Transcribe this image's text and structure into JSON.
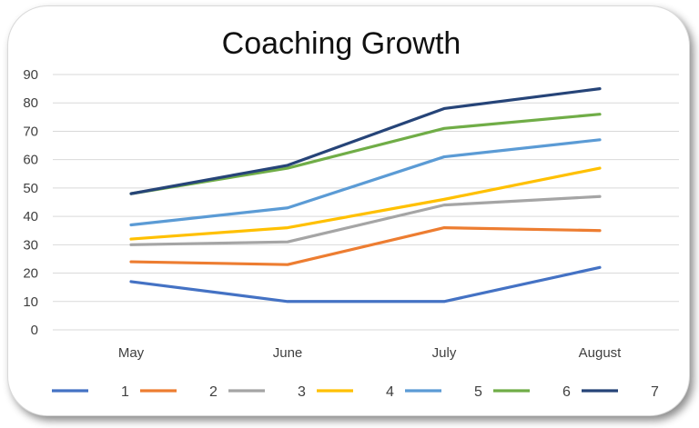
{
  "chart_data": {
    "type": "line",
    "title": "Coaching Growth",
    "xlabel": "",
    "ylabel": "",
    "categories": [
      "May",
      "June",
      "July",
      "August"
    ],
    "ylim": [
      0,
      90
    ],
    "yticks": [
      0,
      10,
      20,
      30,
      40,
      50,
      60,
      70,
      80,
      90
    ],
    "grid": true,
    "legend_position": "bottom",
    "series": [
      {
        "name": "1",
        "color": "#4472C4",
        "values": [
          17,
          10,
          10,
          22
        ]
      },
      {
        "name": "2",
        "color": "#ED7D31",
        "values": [
          24,
          23,
          36,
          35
        ]
      },
      {
        "name": "3",
        "color": "#A5A5A5",
        "values": [
          30,
          31,
          44,
          47
        ]
      },
      {
        "name": "4",
        "color": "#FFC000",
        "values": [
          32,
          36,
          46,
          57
        ]
      },
      {
        "name": "5",
        "color": "#5B9BD5",
        "values": [
          37,
          43,
          61,
          67
        ]
      },
      {
        "name": "6",
        "color": "#70AD47",
        "values": [
          48,
          57,
          71,
          76
        ]
      },
      {
        "name": "7",
        "color": "#264478",
        "values": [
          48,
          58,
          78,
          85
        ]
      }
    ]
  }
}
